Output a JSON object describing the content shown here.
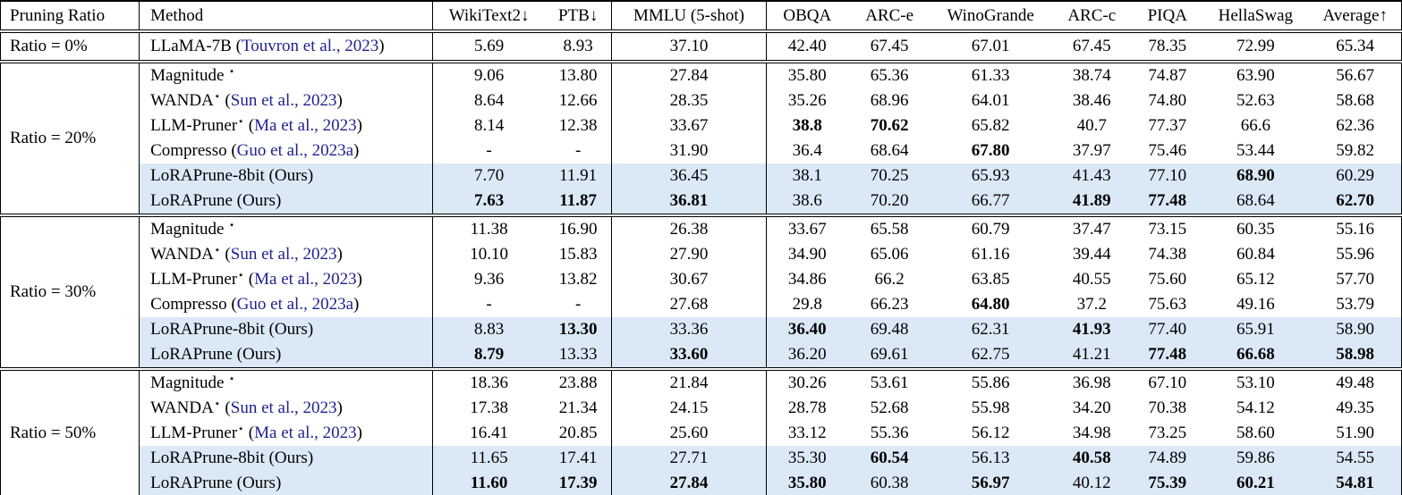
{
  "colors": {
    "citation_link": "#20218f",
    "row_highlight": "#dbe9f7",
    "border": "#000000",
    "background": "#ffffff"
  },
  "symbols": {
    "star": "⋆",
    "open_paren": " (",
    "close_paren": ")"
  },
  "table": {
    "columns": [
      {
        "key": "pruning-ratio",
        "label": "Pruning Ratio"
      },
      {
        "key": "method",
        "label": "Method"
      },
      {
        "key": "wikitext2",
        "label": "WikiText2↓"
      },
      {
        "key": "ptb",
        "label": "PTB↓"
      },
      {
        "key": "mmlu",
        "label": "MMLU (5-shot)"
      },
      {
        "key": "obqa",
        "label": "OBQA"
      },
      {
        "key": "arc-e",
        "label": "ARC-e"
      },
      {
        "key": "winogrande",
        "label": "WinoGrande"
      },
      {
        "key": "arc-c",
        "label": "ARC-c"
      },
      {
        "key": "piqa",
        "label": "PIQA"
      },
      {
        "key": "hellaswag",
        "label": "HellaSwag"
      },
      {
        "key": "average",
        "label": "Average↑"
      }
    ],
    "groups": [
      {
        "ratio_label": "Ratio = 0%",
        "rows": [
          {
            "method": "LLaMA-7B",
            "star": false,
            "citation": "Touvron et al., 2023",
            "highlight": false,
            "values": [
              "5.69",
              "8.93",
              "37.10",
              "42.40",
              "67.45",
              "67.01",
              "67.45",
              "78.35",
              "72.99",
              "65.34"
            ],
            "bold": []
          }
        ]
      },
      {
        "ratio_label": "Ratio = 20%",
        "rows": [
          {
            "method": "Magnitude ",
            "star": true,
            "citation": null,
            "highlight": false,
            "values": [
              "9.06",
              "13.80",
              "27.84",
              "35.80",
              "65.36",
              "61.33",
              "38.74",
              "74.87",
              "63.90",
              "56.67"
            ],
            "bold": []
          },
          {
            "method": "WANDA",
            "star": true,
            "citation": "Sun et al., 2023",
            "highlight": false,
            "values": [
              "8.64",
              "12.66",
              "28.35",
              "35.26",
              "68.96",
              "64.01",
              "38.46",
              "74.80",
              "52.63",
              "58.68"
            ],
            "bold": []
          },
          {
            "method": "LLM-Pruner",
            "star": true,
            "citation": "Ma et al., 2023",
            "highlight": false,
            "values": [
              "8.14",
              "12.38",
              "33.67",
              "38.8",
              "70.62",
              "65.82",
              "40.7",
              "77.37",
              "66.6",
              "62.36"
            ],
            "bold": [
              3,
              4
            ]
          },
          {
            "method": "Compresso",
            "star": false,
            "citation": "Guo et al., 2023a",
            "highlight": false,
            "values": [
              "-",
              "-",
              "31.90",
              "36.4",
              "68.64",
              "67.80",
              "37.97",
              "75.46",
              "53.44",
              "59.82"
            ],
            "bold": [
              5
            ]
          },
          {
            "method": "LoRAPrune-8bit (Ours)",
            "star": false,
            "citation": null,
            "highlight": true,
            "values": [
              "7.70",
              "11.91",
              "36.45",
              "38.1",
              "70.25",
              "65.93",
              "41.43",
              "77.10",
              "68.90",
              "60.29"
            ],
            "bold": [
              8
            ]
          },
          {
            "method": "LoRAPrune (Ours)",
            "star": false,
            "citation": null,
            "highlight": true,
            "values": [
              "7.63",
              "11.87",
              "36.81",
              "38.6",
              "70.20",
              "66.77",
              "41.89",
              "77.48",
              "68.64",
              "62.70"
            ],
            "bold": [
              0,
              1,
              2,
              6,
              7,
              9
            ]
          }
        ]
      },
      {
        "ratio_label": "Ratio = 30%",
        "rows": [
          {
            "method": "Magnitude ",
            "star": true,
            "citation": null,
            "highlight": false,
            "values": [
              "11.38",
              "16.90",
              "26.38",
              "33.67",
              "65.58",
              "60.79",
              "37.47",
              "73.15",
              "60.35",
              "55.16"
            ],
            "bold": []
          },
          {
            "method": "WANDA",
            "star": true,
            "citation": "Sun et al., 2023",
            "highlight": false,
            "values": [
              "10.10",
              "15.83",
              "27.90",
              "34.90",
              "65.06",
              "61.16",
              "39.44",
              "74.38",
              "60.84",
              "55.96"
            ],
            "bold": []
          },
          {
            "method": "LLM-Pruner",
            "star": true,
            "citation": "Ma et al., 2023",
            "highlight": false,
            "values": [
              "9.36",
              "13.82",
              "30.67",
              "34.86",
              "66.2",
              "63.85",
              "40.55",
              "75.60",
              "65.12",
              "57.70"
            ],
            "bold": []
          },
          {
            "method": "Compresso",
            "star": false,
            "citation": "Guo et al., 2023a",
            "highlight": false,
            "values": [
              "-",
              "-",
              "27.68",
              "29.8",
              "66.23",
              "64.80",
              "37.2",
              "75.63",
              "49.16",
              "53.79"
            ],
            "bold": [
              5
            ]
          },
          {
            "method": "LoRAPrune-8bit (Ours)",
            "star": false,
            "citation": null,
            "highlight": true,
            "values": [
              "8.83",
              "13.30",
              "33.36",
              "36.40",
              "69.48",
              "62.31",
              "41.93",
              "77.40",
              "65.91",
              "58.90"
            ],
            "bold": [
              1,
              3,
              6
            ]
          },
          {
            "method": "LoRAPrune (Ours)",
            "star": false,
            "citation": null,
            "highlight": true,
            "values": [
              "8.79",
              "13.33",
              "33.60",
              "36.20",
              "69.61",
              "62.75",
              "41.21",
              "77.48",
              "66.68",
              "58.98"
            ],
            "bold": [
              0,
              2,
              7,
              8,
              9
            ]
          }
        ]
      },
      {
        "ratio_label": "Ratio = 50%",
        "rows": [
          {
            "method": "Magnitude ",
            "star": true,
            "citation": null,
            "highlight": false,
            "values": [
              "18.36",
              "23.88",
              "21.84",
              "30.26",
              "53.61",
              "55.86",
              "36.98",
              "67.10",
              "53.10",
              "49.48"
            ],
            "bold": []
          },
          {
            "method": "WANDA",
            "star": true,
            "citation": "Sun et al., 2023",
            "highlight": false,
            "values": [
              "17.38",
              "21.34",
              "24.15",
              "28.78",
              "52.68",
              "55.98",
              "34.20",
              "70.38",
              "54.12",
              "49.35"
            ],
            "bold": []
          },
          {
            "method": "LLM-Pruner",
            "star": true,
            "citation": "Ma et al., 2023",
            "highlight": false,
            "values": [
              "16.41",
              "20.85",
              "25.60",
              "33.12",
              "55.36",
              "56.12",
              "34.98",
              "73.25",
              "58.60",
              "51.90"
            ],
            "bold": []
          },
          {
            "method": "LoRAPrune-8bit (Ours)",
            "star": false,
            "citation": null,
            "highlight": true,
            "values": [
              "11.65",
              "17.41",
              "27.71",
              "35.30",
              "60.54",
              "56.13",
              "40.58",
              "74.89",
              "59.86",
              "54.55"
            ],
            "bold": [
              4,
              6
            ]
          },
          {
            "method": "LoRAPrune (Ours)",
            "star": false,
            "citation": null,
            "highlight": true,
            "values": [
              "11.60",
              "17.39",
              "27.84",
              "35.80",
              "60.38",
              "56.97",
              "40.12",
              "75.39",
              "60.21",
              "54.81"
            ],
            "bold": [
              0,
              1,
              2,
              3,
              5,
              7,
              8,
              9
            ]
          }
        ]
      }
    ]
  }
}
